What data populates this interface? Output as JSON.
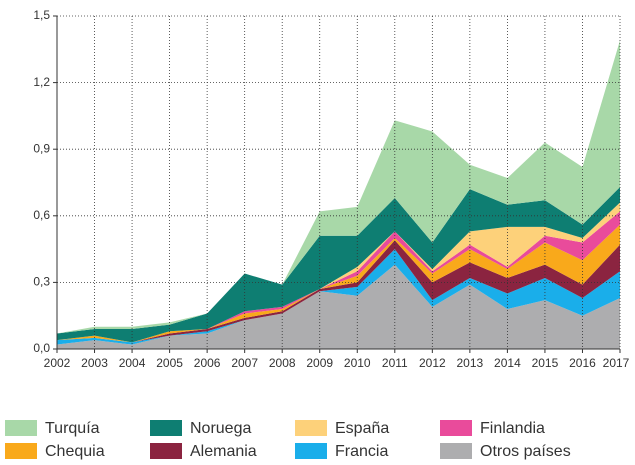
{
  "chart_data": {
    "type": "stacked_area",
    "categories": [
      "2002",
      "2003",
      "2004",
      "2005",
      "2006",
      "2007",
      "2008",
      "2009",
      "2010",
      "2011",
      "2012",
      "2013",
      "2014",
      "2015",
      "2016",
      "2017"
    ],
    "series": [
      {
        "name": "Turquía",
        "color": "#a8d8a8",
        "values": [
          0,
          0.01,
          0.01,
          0.01,
          0,
          0,
          0,
          0.11,
          0.13,
          0.35,
          0.5,
          0.11,
          0.12,
          0.26,
          0.26,
          0.66
        ]
      },
      {
        "name": "Noruega",
        "color": "#0e7e72",
        "values": [
          0.03,
          0.03,
          0.06,
          0.03,
          0.07,
          0.17,
          0.1,
          0.24,
          0.14,
          0.15,
          0.12,
          0.19,
          0.1,
          0.12,
          0.06,
          0.07
        ]
      },
      {
        "name": "España",
        "color": "#fdd17a",
        "values": [
          0,
          0,
          0,
          0,
          0,
          0,
          0,
          0,
          0.02,
          0,
          0.01,
          0.06,
          0.18,
          0.04,
          0.02,
          0.04
        ]
      },
      {
        "name": "Finlandia",
        "color": "#e94b9b",
        "values": [
          0,
          0,
          0,
          0,
          0,
          0.01,
          0.01,
          0,
          0.02,
          0.03,
          0.01,
          0.02,
          0.01,
          0.03,
          0.08,
          0.06
        ]
      },
      {
        "name": "Chequia",
        "color": "#f9a91b",
        "values": [
          0,
          0.01,
          0,
          0.01,
          0,
          0.02,
          0.01,
          0,
          0.03,
          0.01,
          0.04,
          0.06,
          0.04,
          0.1,
          0.11,
          0.09
        ]
      },
      {
        "name": "Alemania",
        "color": "#8b2440",
        "values": [
          0,
          0,
          0,
          0.01,
          0.01,
          0.01,
          0.01,
          0.01,
          0.02,
          0.04,
          0.08,
          0.07,
          0.07,
          0.06,
          0.06,
          0.12
        ]
      },
      {
        "name": "Francia",
        "color": "#1aaeea",
        "values": [
          0.02,
          0.01,
          0.01,
          0,
          0.01,
          0,
          0,
          0,
          0.04,
          0.07,
          0.03,
          0.03,
          0.07,
          0.1,
          0.08,
          0.12
        ]
      },
      {
        "name": "Otros países",
        "color": "#adadaf",
        "values": [
          0.02,
          0.04,
          0.02,
          0.06,
          0.07,
          0.13,
          0.16,
          0.26,
          0.24,
          0.38,
          0.19,
          0.29,
          0.18,
          0.22,
          0.15,
          0.23
        ]
      }
    ],
    "ylim": [
      0,
      1.5
    ],
    "yticks": [
      {
        "value": 0,
        "label": "0,0"
      },
      {
        "value": 0.3,
        "label": "0,3"
      },
      {
        "value": 0.6,
        "label": "0,6"
      },
      {
        "value": 0.9,
        "label": "0,9"
      },
      {
        "value": 1.2,
        "label": "1,2"
      },
      {
        "value": 1.5,
        "label": "1,5"
      }
    ],
    "grid": true,
    "legend": "bottom"
  }
}
